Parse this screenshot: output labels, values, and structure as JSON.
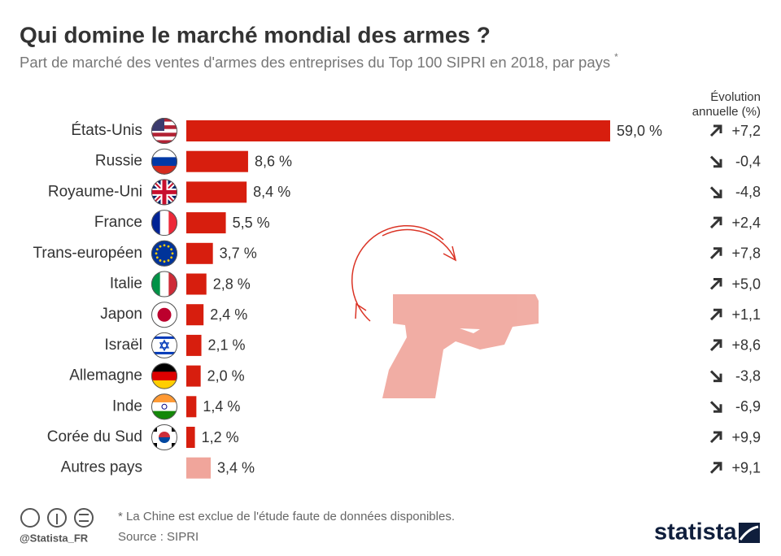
{
  "chart_data": {
    "type": "hbar",
    "title": "Qui domine le marché mondial des armes ?",
    "subtitle": "Part de marché des ventes d'armes des entreprises du Top 100 SIPRI en 2018, par pays",
    "subtitle_mark": "*",
    "categories": [
      "États-Unis",
      "Russie",
      "Royaume-Uni",
      "France",
      "Trans-européen",
      "Italie",
      "Japon",
      "Israël",
      "Allemagne",
      "Inde",
      "Corée du Sud",
      "Autres pays"
    ],
    "values": [
      59.0,
      8.6,
      8.4,
      5.5,
      3.7,
      2.8,
      2.4,
      2.1,
      2.0,
      1.4,
      1.2,
      3.4
    ],
    "value_labels": [
      "59,0 %",
      "8,6 %",
      "8,4 %",
      "5,5 %",
      "3,7 %",
      "2,8 %",
      "2,4 %",
      "2,1 %",
      "2,0 %",
      "1,4 %",
      "1,2 %",
      "3,4 %"
    ],
    "colors": [
      "#d71e0e",
      "#d71e0e",
      "#d71e0e",
      "#d71e0e",
      "#d71e0e",
      "#d71e0e",
      "#d71e0e",
      "#d71e0e",
      "#d71e0e",
      "#d71e0e",
      "#d71e0e",
      "#f0a59b"
    ],
    "evolution": {
      "title_lines": [
        "Évolution",
        "annuelle (%)"
      ],
      "values": [
        7.2,
        -0.4,
        -4.8,
        2.4,
        7.8,
        5.0,
        1.1,
        8.6,
        -3.8,
        -6.9,
        9.9,
        9.1
      ],
      "value_labels": [
        "+7,2",
        "-0,4",
        "-4,8",
        "+2,4",
        "+7,8",
        "+5,0",
        "+1,1",
        "+8,6",
        "-3,8",
        "-6,9",
        "+9,9",
        "+9,1"
      ]
    },
    "footnote": "* La Chine est exclue de l'étude faute de données disponibles.",
    "source": "Source : SIPRI",
    "handle": "@Statista_FR",
    "brand": "statista"
  }
}
